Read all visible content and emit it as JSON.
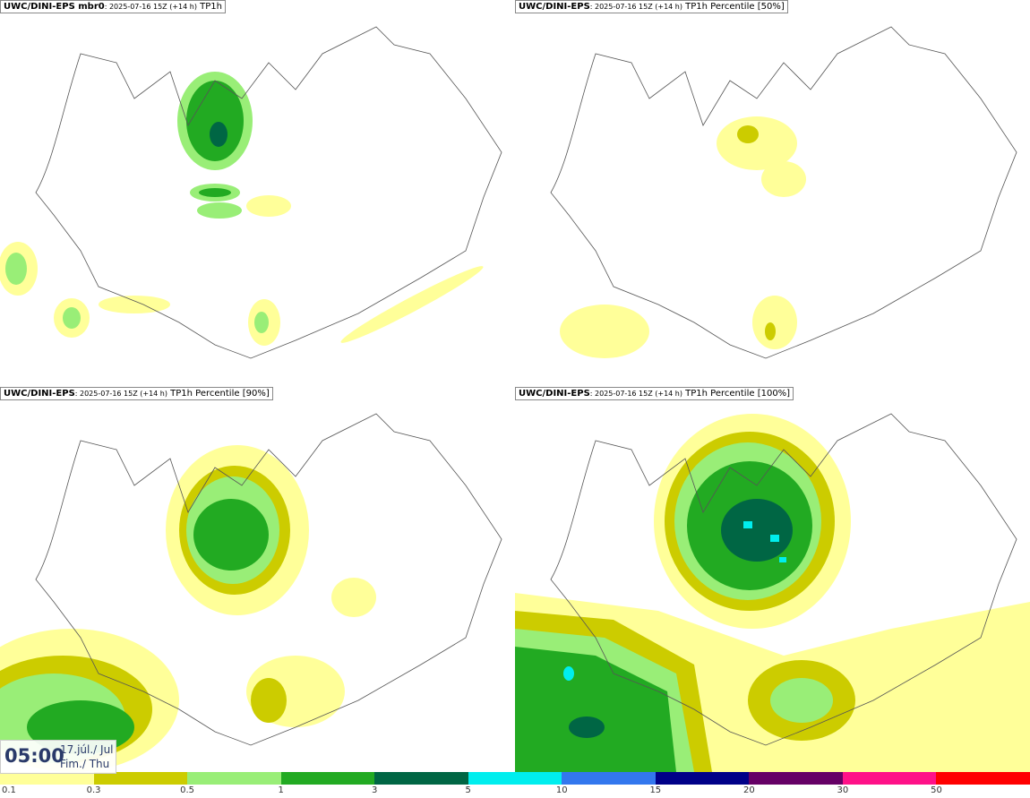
{
  "panels": [
    {
      "model": "UWC/DINI-EPS mbr0",
      "run": ": 2025-07-16 15Z (+14 h)",
      "field": " TP1h"
    },
    {
      "model": "UWC/DINI-EPS",
      "run": ": 2025-07-16 15Z (+14 h)",
      "field": " TP1h Percentile [50%]"
    },
    {
      "model": "UWC/DINI-EPS",
      "run": ": 2025-07-16 15Z (+14 h)",
      "field": " TP1h Percentile [90%]"
    },
    {
      "model": "UWC/DINI-EPS",
      "run": ": 2025-07-16 15Z (+14 h)",
      "field": " TP1h Percentile [100%]"
    }
  ],
  "time": {
    "hour": "05:00",
    "date": "17.júl./ Jul",
    "day": "Fim./ Thu"
  },
  "scale": {
    "labels": [
      "0.1",
      "0.3",
      "0.5",
      "1",
      "3",
      "5",
      "10",
      "15",
      "20",
      "30",
      "50"
    ],
    "colors": [
      "#ffff99",
      "#cccc00",
      "#99ee77",
      "#22aa22",
      "#006644",
      "#00eeee",
      "#3377ee",
      "#000088",
      "#660066",
      "#ff1188",
      "#ff0000"
    ]
  }
}
